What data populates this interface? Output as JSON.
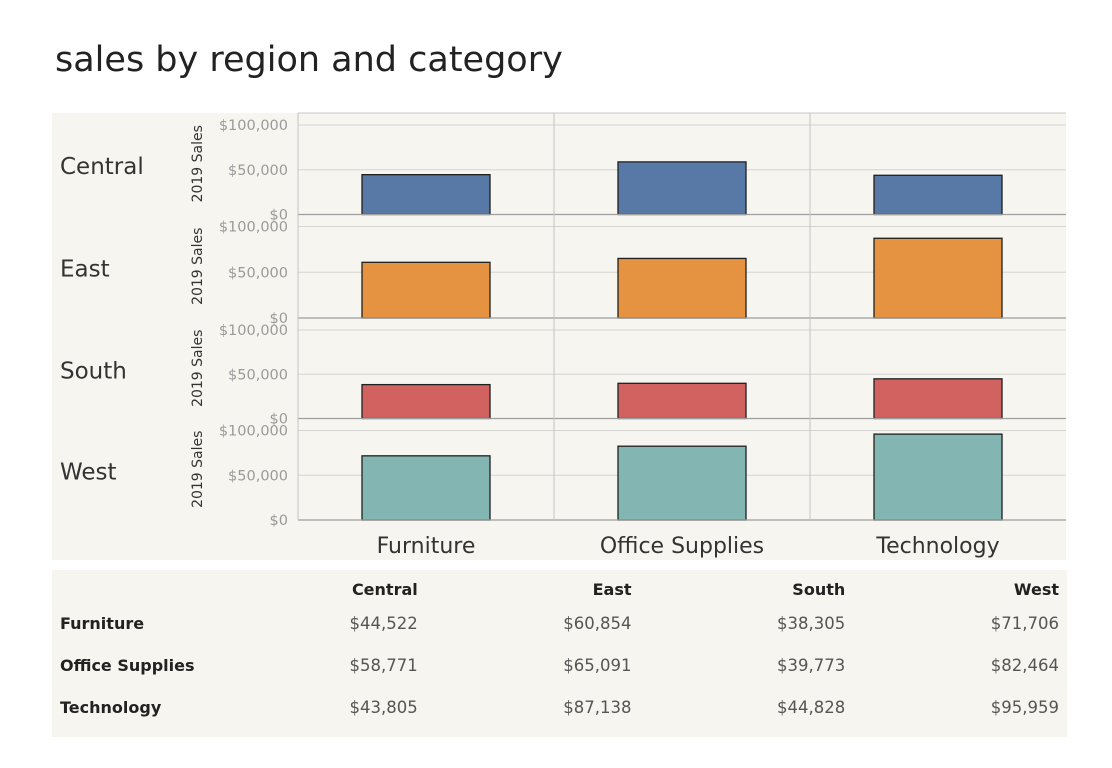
{
  "title": "sales by region and category",
  "chart_data": {
    "type": "bar",
    "title": "sales by region and category",
    "ylabel": "2019 Sales",
    "ylim": [
      0,
      100000
    ],
    "yticks": [
      "$0",
      "$50,000",
      "$100,000"
    ],
    "categories": [
      "Furniture",
      "Office Supplies",
      "Technology"
    ],
    "grid": true,
    "series": [
      {
        "name": "Central",
        "color": "#5878a6",
        "values": [
          44522,
          58771,
          43805
        ]
      },
      {
        "name": "East",
        "color": "#e59340",
        "values": [
          60854,
          65091,
          87138
        ]
      },
      {
        "name": "South",
        "color": "#d1625f",
        "values": [
          38305,
          39773,
          44828
        ]
      },
      {
        "name": "West",
        "color": "#83b5b2",
        "values": [
          71706,
          82464,
          95959
        ]
      }
    ]
  },
  "table": {
    "columns": [
      "",
      "Central",
      "East",
      "South",
      "West"
    ],
    "rows": [
      {
        "label": "Furniture",
        "values": [
          "$44,522",
          "$60,854",
          "$38,305",
          "$71,706"
        ]
      },
      {
        "label": "Office Supplies",
        "values": [
          "$58,771",
          "$65,091",
          "$39,773",
          "$82,464"
        ]
      },
      {
        "label": "Technology",
        "values": [
          "$43,805",
          "$87,138",
          "$44,828",
          "$95,959"
        ]
      }
    ]
  }
}
